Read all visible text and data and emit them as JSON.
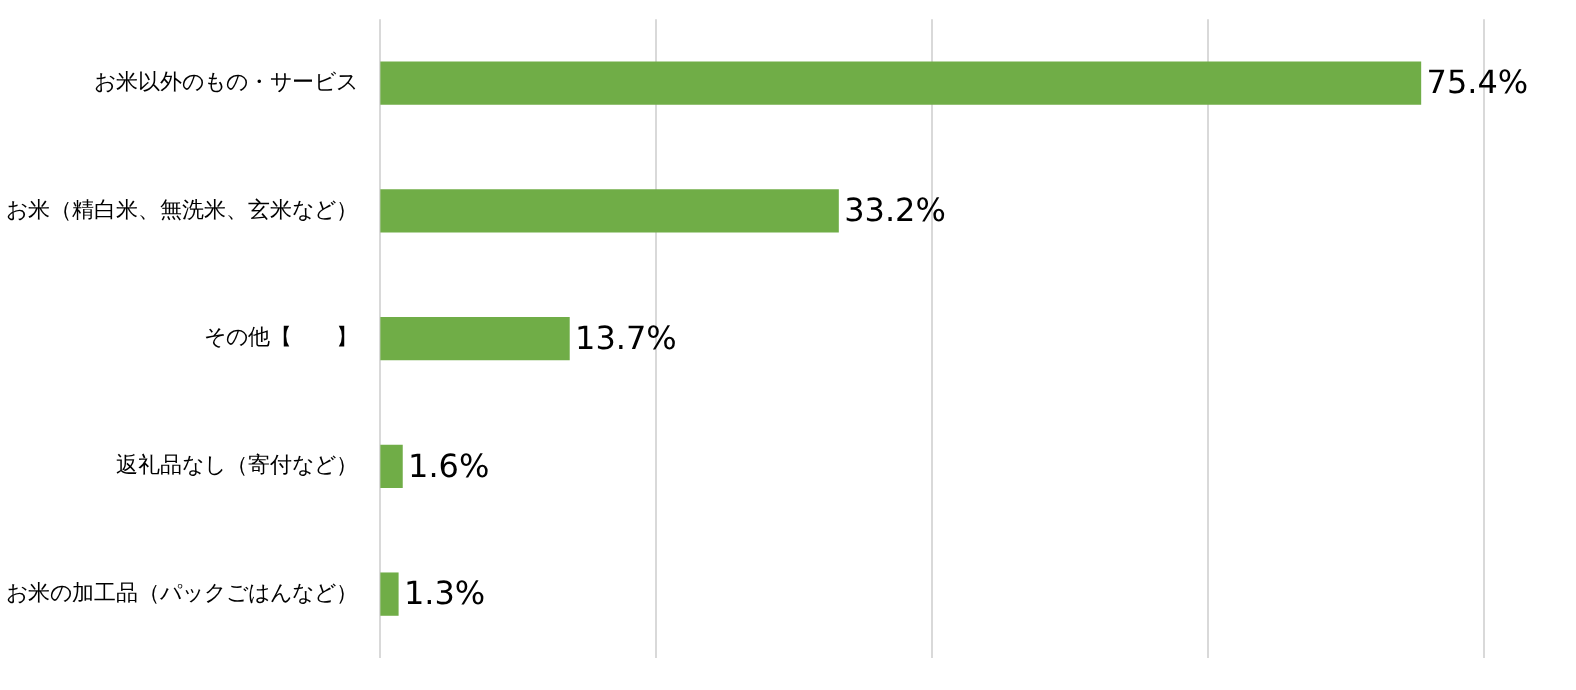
{
  "chart_data": {
    "type": "bar",
    "orientation": "horizontal",
    "categories": [
      "お米以外のもの・サービス",
      "お米（精白米、無洗米、玄米など）",
      "その他【　　】",
      "返礼品なし（寄付など）",
      "お米の加工品（パックごはんなど）"
    ],
    "values": [
      75.4,
      33.2,
      13.7,
      1.6,
      1.3
    ],
    "value_labels": [
      "75.4%",
      "33.2%",
      "13.7%",
      "1.6%",
      "1.3%"
    ],
    "color": "#70ad47",
    "xlim": [
      0,
      80
    ],
    "xticks": [
      {
        "value": 0,
        "label": null
      },
      {
        "value": 20,
        "label": null
      },
      {
        "value": 40,
        "label": null
      },
      {
        "value": 60,
        "label": null
      },
      {
        "value": 80,
        "label": null
      }
    ],
    "grid": "x",
    "tick_labels": "y",
    "legend": false
  }
}
